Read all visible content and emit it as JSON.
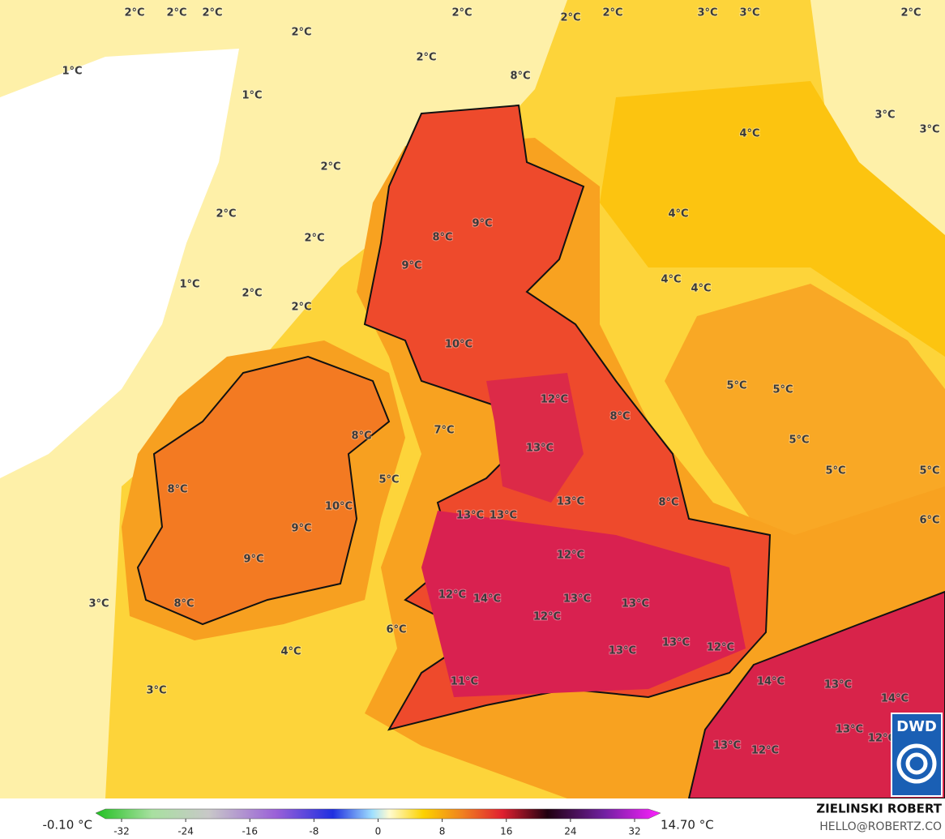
{
  "map": {
    "labels": [
      "2°C",
      "2°C",
      "2°C",
      "2°C",
      "2°C",
      "2°C",
      "2°C",
      "3°C",
      "3°C",
      "2°C",
      "1°C",
      "2°C",
      "8°C",
      "1°C",
      "3°C",
      "3°C",
      "4°C",
      "2°C",
      "2°C",
      "4°C",
      "9°C",
      "2°C",
      "8°C",
      "9°C",
      "4°C",
      "4°C",
      "1°C",
      "2°C",
      "2°C",
      "10°C",
      "5°C",
      "5°C",
      "12°C",
      "8°C",
      "8°C",
      "7°C",
      "5°C",
      "13°C",
      "5°C",
      "5°C",
      "5°C",
      "8°C",
      "10°C",
      "13°C",
      "8°C",
      "13°C",
      "13°C",
      "6°C",
      "9°C",
      "12°C",
      "9°C",
      "12°C",
      "14°C",
      "13°C",
      "13°C",
      "3°C",
      "8°C",
      "12°C",
      "6°C",
      "13°C",
      "12°C",
      "4°C",
      "13°C",
      "11°C",
      "14°C",
      "13°C",
      "14°C",
      "3°C",
      "13°C",
      "12°C",
      "13°C",
      "12°C"
    ]
  },
  "legend": {
    "min_label": "-0.10 °C",
    "max_label": "14.70 °C",
    "ticks": [
      -32,
      -24,
      -16,
      -8,
      0,
      8,
      16,
      24,
      32
    ]
  },
  "credits": {
    "author": "ZIELINSKI ROBERT",
    "contact": "HELLO@ROBERTZ.CO"
  },
  "logo": "DWD"
}
